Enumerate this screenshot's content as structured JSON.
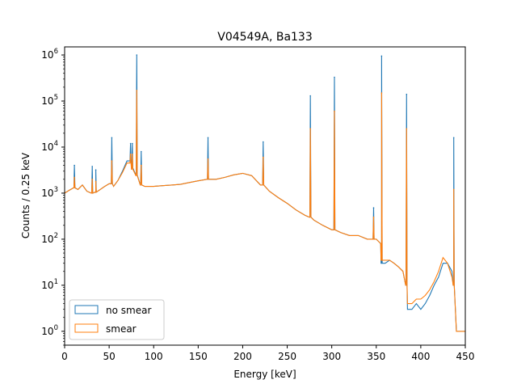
{
  "chart_data": {
    "type": "line",
    "title": "V04549A, Ba133",
    "xlabel": "Energy [keV]",
    "ylabel": "Counts / 0.25 keV",
    "xlim": [
      0,
      450
    ],
    "ylim": [
      0.5,
      1500000
    ],
    "yscale": "log",
    "grid": false,
    "legend_position": "lower-left",
    "x_ticks": [
      0,
      50,
      100,
      150,
      200,
      250,
      300,
      350,
      400,
      450
    ],
    "x_tick_labels": [
      "0",
      "50",
      "100",
      "150",
      "200",
      "250",
      "300",
      "350",
      "400",
      "450"
    ],
    "y_ticks": [
      1,
      10,
      100,
      1000,
      10000,
      100000,
      1000000
    ],
    "y_tick_labels": [
      {
        "base": "10",
        "exp": "0"
      },
      {
        "base": "10",
        "exp": "1"
      },
      {
        "base": "10",
        "exp": "2"
      },
      {
        "base": "10",
        "exp": "3"
      },
      {
        "base": "10",
        "exp": "4"
      },
      {
        "base": "10",
        "exp": "5"
      },
      {
        "base": "10",
        "exp": "6"
      }
    ],
    "series": [
      {
        "name": "no smear",
        "color": "#1f77b4",
        "x": [
          0,
          5,
          10,
          15,
          20,
          25,
          30,
          35,
          40,
          45,
          50,
          55,
          60,
          65,
          70,
          75,
          80,
          85,
          90,
          100,
          110,
          120,
          130,
          140,
          150,
          160,
          170,
          180,
          190,
          200,
          210,
          220,
          230,
          240,
          250,
          260,
          270,
          275,
          280,
          290,
          300,
          302,
          310,
          320,
          330,
          340,
          350,
          355,
          356,
          358,
          360,
          365,
          370,
          375,
          380,
          383,
          385,
          390,
          395,
          400,
          405,
          410,
          415,
          420,
          425,
          430,
          435,
          437,
          440,
          445,
          450
        ],
        "y": [
          1000,
          1150,
          1300,
          1200,
          1500,
          1100,
          1000,
          1050,
          1200,
          1400,
          1600,
          1400,
          1900,
          3000,
          5000,
          3500,
          2500,
          1500,
          1400,
          1400,
          1450,
          1500,
          1550,
          1700,
          1850,
          2000,
          2000,
          2200,
          2500,
          2700,
          2400,
          1500,
          1100,
          800,
          600,
          430,
          330,
          300,
          260,
          200,
          160,
          160,
          140,
          120,
          120,
          100,
          100,
          80,
          30,
          30,
          30,
          35,
          30,
          25,
          20,
          10,
          3,
          3,
          4,
          3,
          4,
          6,
          10,
          15,
          30,
          30,
          20,
          10,
          1,
          1,
          1
        ],
        "peaks": [
          {
            "x": 11,
            "y": 4000
          },
          {
            "x": 31,
            "y": 3800
          },
          {
            "x": 35,
            "y": 3200
          },
          {
            "x": 53,
            "y": 16000
          },
          {
            "x": 74,
            "y": 12000
          },
          {
            "x": 76,
            "y": 12000
          },
          {
            "x": 81,
            "y": 1000000
          },
          {
            "x": 86,
            "y": 8000
          },
          {
            "x": 161,
            "y": 16000
          },
          {
            "x": 223,
            "y": 13000
          },
          {
            "x": 276,
            "y": 130000
          },
          {
            "x": 303,
            "y": 330000
          },
          {
            "x": 347,
            "y": 480
          },
          {
            "x": 356,
            "y": 950000
          },
          {
            "x": 384,
            "y": 140000
          },
          {
            "x": 437,
            "y": 16000
          }
        ]
      },
      {
        "name": "smear",
        "color": "#ff7f0e",
        "x": [
          0,
          5,
          10,
          15,
          20,
          25,
          30,
          35,
          40,
          45,
          50,
          55,
          60,
          65,
          70,
          75,
          80,
          85,
          90,
          100,
          110,
          120,
          130,
          140,
          150,
          160,
          170,
          180,
          190,
          200,
          210,
          220,
          230,
          240,
          250,
          260,
          270,
          275,
          280,
          290,
          300,
          302,
          310,
          320,
          330,
          340,
          350,
          355,
          356,
          358,
          360,
          365,
          370,
          375,
          380,
          383,
          385,
          390,
          395,
          400,
          405,
          410,
          415,
          420,
          425,
          430,
          435,
          437,
          440,
          445,
          450
        ],
        "y": [
          1000,
          1150,
          1300,
          1200,
          1500,
          1100,
          1000,
          1050,
          1200,
          1400,
          1600,
          1400,
          1900,
          2800,
          4500,
          3300,
          2400,
          1500,
          1400,
          1400,
          1450,
          1500,
          1550,
          1700,
          1850,
          2000,
          2000,
          2200,
          2500,
          2700,
          2400,
          1500,
          1100,
          800,
          600,
          430,
          330,
          300,
          260,
          200,
          160,
          160,
          140,
          120,
          120,
          100,
          100,
          80,
          35,
          35,
          35,
          35,
          30,
          25,
          20,
          10,
          4,
          4,
          5,
          5,
          6,
          8,
          12,
          20,
          40,
          30,
          15,
          10,
          1,
          1,
          1
        ],
        "peaks": [
          {
            "x": 11,
            "y": 2200
          },
          {
            "x": 31,
            "y": 2000
          },
          {
            "x": 35,
            "y": 1800
          },
          {
            "x": 53,
            "y": 5000
          },
          {
            "x": 74,
            "y": 7000
          },
          {
            "x": 76,
            "y": 7000
          },
          {
            "x": 81,
            "y": 170000
          },
          {
            "x": 86,
            "y": 4000
          },
          {
            "x": 161,
            "y": 5500
          },
          {
            "x": 223,
            "y": 6000
          },
          {
            "x": 276,
            "y": 25000
          },
          {
            "x": 303,
            "y": 60000
          },
          {
            "x": 347,
            "y": 300
          },
          {
            "x": 356,
            "y": 150000
          },
          {
            "x": 384,
            "y": 25000
          },
          {
            "x": 437,
            "y": 1200
          }
        ]
      }
    ]
  }
}
